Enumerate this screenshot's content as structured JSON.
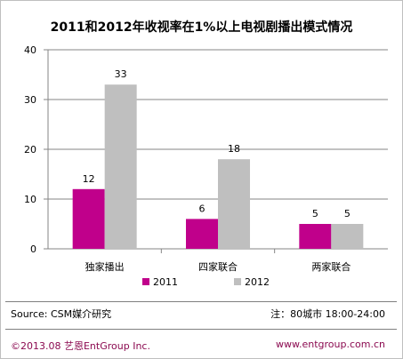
{
  "chart_data": {
    "type": "bar",
    "title": "2011和2012年收视率在1%以上电视剧播出模式情况",
    "categories": [
      "独家播出",
      "四家联合",
      "两家联合"
    ],
    "series": [
      {
        "name": "2011",
        "values": [
          12,
          6,
          5
        ],
        "color": "#c0008b"
      },
      {
        "name": "2012",
        "values": [
          33,
          18,
          5
        ],
        "color": "#bfbfbf"
      }
    ],
    "yticks": [
      0,
      10,
      20,
      30,
      40
    ],
    "ylim": [
      0,
      40
    ],
    "grid": true,
    "legend_position": "bottom"
  },
  "footer": {
    "source": "Source: CSM媒介研究",
    "note": "注：80城市 18:00-24:00",
    "copyright": "©2013.08 艺恩EntGroup Inc.",
    "website": "www.entgroup.com.cn"
  }
}
